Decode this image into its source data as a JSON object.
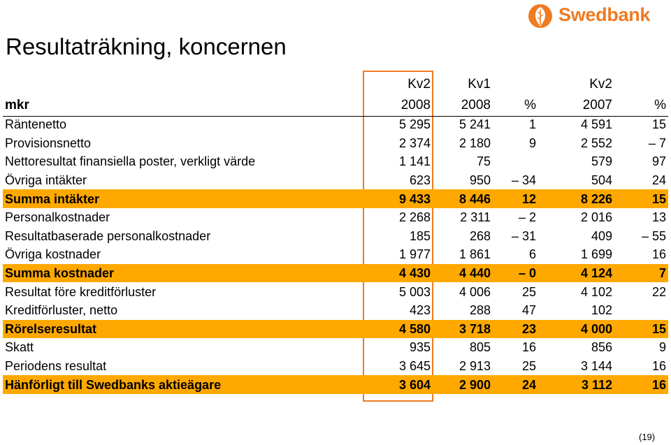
{
  "brand": {
    "name": "Swedbank",
    "color": "#ef7b22",
    "logo_icon": "oak-leaf-icon"
  },
  "title": "Resultaträkning, koncernen",
  "header": {
    "row1": [
      "",
      "Kv2",
      "Kv1",
      "",
      "Kv2",
      ""
    ],
    "row2": [
      "mkr",
      "2008",
      "2008",
      "%",
      "2007",
      "%"
    ]
  },
  "rows": [
    {
      "label": "Räntenetto",
      "kv2_2008": "5 295",
      "kv1_2008": "5 241",
      "pct1": "1",
      "kv2_2007": "4 591",
      "pct2": "15",
      "highlight": false
    },
    {
      "label": "Provisionsnetto",
      "kv2_2008": "2 374",
      "kv1_2008": "2 180",
      "pct1": "9",
      "kv2_2007": "2 552",
      "pct2": "– 7",
      "highlight": false
    },
    {
      "label": "Nettoresultat finansiella poster, verkligt värde",
      "kv2_2008": "1 141",
      "kv1_2008": "75",
      "pct1": "",
      "kv2_2007": "579",
      "pct2": "97",
      "highlight": false
    },
    {
      "label": "Övriga intäkter",
      "kv2_2008": "623",
      "kv1_2008": "950",
      "pct1": "– 34",
      "kv2_2007": "504",
      "pct2": "24",
      "highlight": false
    },
    {
      "label": "Summa intäkter",
      "kv2_2008": "9 433",
      "kv1_2008": "8 446",
      "pct1": "12",
      "kv2_2007": "8 226",
      "pct2": "15",
      "highlight": true
    },
    {
      "label": "Personalkostnader",
      "kv2_2008": "2 268",
      "kv1_2008": "2 311",
      "pct1": "– 2",
      "kv2_2007": "2 016",
      "pct2": "13",
      "highlight": false
    },
    {
      "label": "Resultatbaserade personalkostnader",
      "kv2_2008": "185",
      "kv1_2008": "268",
      "pct1": "– 31",
      "kv2_2007": "409",
      "pct2": "– 55",
      "highlight": false
    },
    {
      "label": "Övriga kostnader",
      "kv2_2008": "1 977",
      "kv1_2008": "1 861",
      "pct1": "6",
      "kv2_2007": "1 699",
      "pct2": "16",
      "highlight": false
    },
    {
      "label": "Summa kostnader",
      "kv2_2008": "4 430",
      "kv1_2008": "4 440",
      "pct1": "– 0",
      "kv2_2007": "4 124",
      "pct2": "7",
      "highlight": true
    },
    {
      "label": "Resultat före kreditförluster",
      "kv2_2008": "5 003",
      "kv1_2008": "4 006",
      "pct1": "25",
      "kv2_2007": "4 102",
      "pct2": "22",
      "highlight": false
    },
    {
      "label": "Kreditförluster, netto",
      "kv2_2008": "423",
      "kv1_2008": "288",
      "pct1": "47",
      "kv2_2007": "102",
      "pct2": "",
      "highlight": false
    },
    {
      "label": "Rörelseresultat",
      "kv2_2008": "4 580",
      "kv1_2008": "3 718",
      "pct1": "23",
      "kv2_2007": "4 000",
      "pct2": "15",
      "highlight": true
    },
    {
      "label": "Skatt",
      "kv2_2008": "935",
      "kv1_2008": "805",
      "pct1": "16",
      "kv2_2007": "856",
      "pct2": "9",
      "highlight": false
    },
    {
      "label": "Periodens resultat",
      "kv2_2008": "3 645",
      "kv1_2008": "2 913",
      "pct1": "25",
      "kv2_2007": "3 144",
      "pct2": "16",
      "highlight": false
    },
    {
      "label": "Hänförligt till Swedbanks aktieägare",
      "kv2_2008": "3 604",
      "kv1_2008": "2 900",
      "pct1": "24",
      "kv2_2007": "3 112",
      "pct2": "16",
      "highlight": true
    }
  ],
  "highlight_color": "#ffa800",
  "frame_color": "#ef7b22",
  "page_number": "(19)"
}
